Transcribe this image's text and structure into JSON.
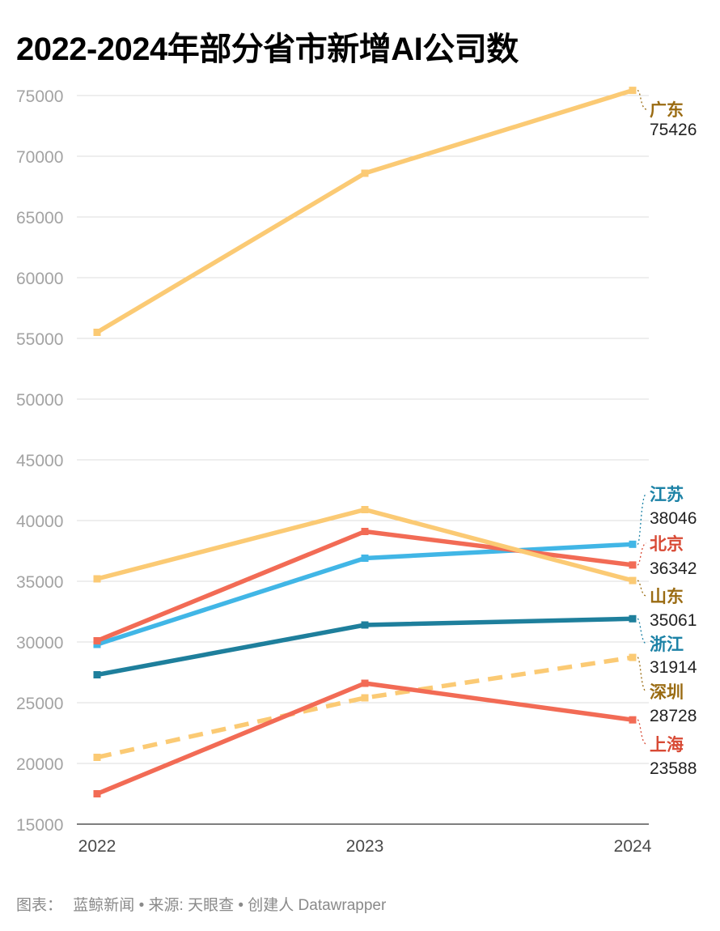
{
  "title": "2022-2024年部分省市新增AI公司数",
  "footer": {
    "prefix": "图表：",
    "text": "蓝鲸新闻 • 来源: 天眼查 • 创建人 Datawrapper"
  },
  "chart_data": {
    "type": "line",
    "title": "2022-2024年部分省市新增AI公司数",
    "xlabel": "",
    "ylabel": "",
    "x": [
      "2022",
      "2023",
      "2024"
    ],
    "ylim": [
      15000,
      75000
    ],
    "yticks": [
      15000,
      20000,
      25000,
      30000,
      35000,
      40000,
      45000,
      50000,
      55000,
      60000,
      65000,
      70000,
      75000
    ],
    "grid": true,
    "legend": "direct labels at right end of lines",
    "series": [
      {
        "name": "广东",
        "values": [
          55500,
          68600,
          75426
        ],
        "color": "#fbca74",
        "label_color": "#9a6b12",
        "dashed": false
      },
      {
        "name": "江苏",
        "values": [
          29800,
          36900,
          38046
        ],
        "color": "#41b6e6",
        "label_color": "#1c82a6",
        "dashed": false
      },
      {
        "name": "北京",
        "values": [
          30100,
          39100,
          36342
        ],
        "color": "#f26b55",
        "label_color": "#d84a35",
        "dashed": false
      },
      {
        "name": "山东",
        "values": [
          35200,
          40900,
          35061
        ],
        "color": "#fbca74",
        "label_color": "#9a6b12",
        "dashed": false
      },
      {
        "name": "浙江",
        "values": [
          27300,
          31400,
          31914
        ],
        "color": "#1e7f9c",
        "label_color": "#1c82a6",
        "dashed": false
      },
      {
        "name": "深圳",
        "values": [
          20500,
          25400,
          28728
        ],
        "color": "#fbca74",
        "label_color": "#9a6b12",
        "dashed": true
      },
      {
        "name": "上海",
        "values": [
          17500,
          26600,
          23588
        ],
        "color": "#f26b55",
        "label_color": "#d84a35",
        "dashed": false
      }
    ],
    "end_labels": [
      {
        "name": "广东",
        "value": "75426"
      },
      {
        "name": "江苏",
        "value": "38046"
      },
      {
        "name": "北京",
        "value": "36342"
      },
      {
        "name": "山东",
        "value": "35061"
      },
      {
        "name": "浙江",
        "value": "31914"
      },
      {
        "name": "深圳",
        "value": "28728"
      },
      {
        "name": "上海",
        "value": "23588"
      }
    ]
  }
}
